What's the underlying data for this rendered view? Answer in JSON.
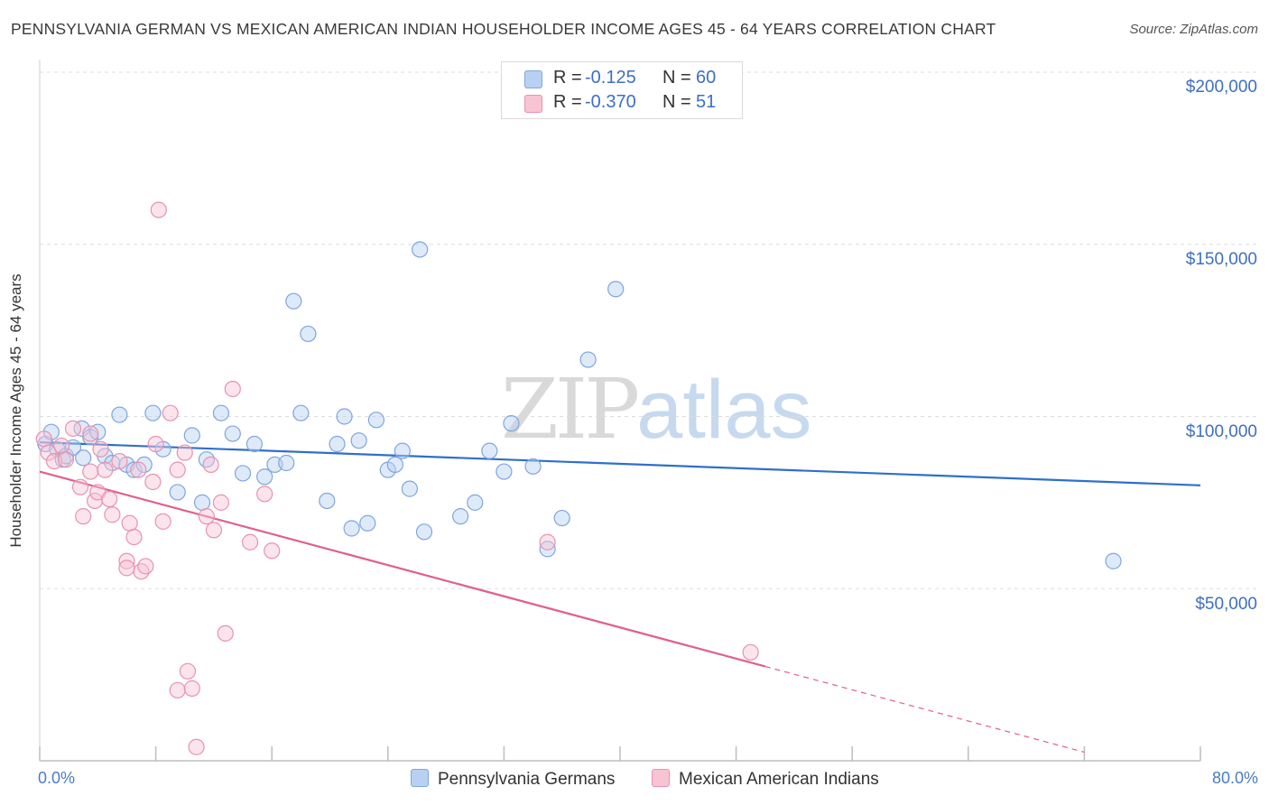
{
  "header": {
    "title": "PENNSYLVANIA GERMAN VS MEXICAN AMERICAN INDIAN HOUSEHOLDER INCOME AGES 45 - 64 YEARS CORRELATION CHART",
    "source": "Source: ZipAtlas.com"
  },
  "watermark": {
    "zip": "ZIP",
    "atlas": "atlas"
  },
  "legend": {
    "r_label": "R =",
    "n_label": "N =",
    "series1": {
      "r": "-0.125",
      "n": "60"
    },
    "series2": {
      "r": "-0.370",
      "n": "51"
    }
  },
  "colors": {
    "series1_fill": "#b8d1f2",
    "series1_stroke": "#7ea6de",
    "series1_line": "#2f6fcb",
    "series2_fill": "#f8c4d4",
    "series2_stroke": "#e892ae",
    "series2_line": "#e0608d",
    "tick_label": "#3d6fc4",
    "grid": "#dcdcdc"
  },
  "chart_data": {
    "type": "scatter",
    "title": "PENNSYLVANIA GERMAN VS MEXICAN AMERICAN INDIAN HOUSEHOLDER INCOME AGES 45 - 64 YEARS CORRELATION CHART",
    "xlabel": "",
    "ylabel": "Householder Income Ages 45 - 64 years",
    "xlim": [
      0,
      80
    ],
    "ylim": [
      0,
      200000
    ],
    "x_tick_labels": [
      "0.0%",
      "80.0%"
    ],
    "y_tick_labels": [
      "$50,000",
      "$100,000",
      "$150,000",
      "$200,000"
    ],
    "y_ticks": [
      50000,
      100000,
      150000,
      200000
    ],
    "grid": true,
    "legend_position": "top-center and bottom",
    "series": [
      {
        "name": "Pennsylvania Germans",
        "r": -0.125,
        "n": 60,
        "trend": {
          "x": [
            0,
            80
          ],
          "y": [
            92500,
            80000
          ],
          "dashed_from": null
        },
        "points": [
          [
            0.4,
            92000
          ],
          [
            0.8,
            95500
          ],
          [
            1.2,
            90500
          ],
          [
            1.6,
            87500
          ],
          [
            1.8,
            88500
          ],
          [
            2.3,
            91000
          ],
          [
            2.9,
            96500
          ],
          [
            3.0,
            88000
          ],
          [
            3.5,
            94000
          ],
          [
            4.0,
            95500
          ],
          [
            4.5,
            88500
          ],
          [
            5.0,
            86500
          ],
          [
            5.5,
            100500
          ],
          [
            6.0,
            86000
          ],
          [
            6.5,
            84500
          ],
          [
            7.2,
            86000
          ],
          [
            7.8,
            101000
          ],
          [
            8.5,
            90500
          ],
          [
            9.5,
            78000
          ],
          [
            10.5,
            94500
          ],
          [
            11.2,
            75000
          ],
          [
            11.5,
            87500
          ],
          [
            12.5,
            101000
          ],
          [
            13.3,
            95000
          ],
          [
            14.0,
            83500
          ],
          [
            14.8,
            92000
          ],
          [
            15.5,
            82500
          ],
          [
            16.2,
            86000
          ],
          [
            17.0,
            86500
          ],
          [
            17.5,
            133500
          ],
          [
            18.0,
            101000
          ],
          [
            18.5,
            124000
          ],
          [
            19.8,
            75500
          ],
          [
            20.5,
            92000
          ],
          [
            21.0,
            100000
          ],
          [
            21.5,
            67500
          ],
          [
            22.0,
            93000
          ],
          [
            22.6,
            69000
          ],
          [
            23.2,
            99000
          ],
          [
            24.0,
            84500
          ],
          [
            24.5,
            86000
          ],
          [
            25.0,
            90000
          ],
          [
            25.5,
            79000
          ],
          [
            26.2,
            148500
          ],
          [
            26.5,
            66500
          ],
          [
            29.0,
            71000
          ],
          [
            30.0,
            75000
          ],
          [
            31.0,
            90000
          ],
          [
            32.0,
            84000
          ],
          [
            32.5,
            98000
          ],
          [
            34.0,
            85500
          ],
          [
            35.0,
            61500
          ],
          [
            36.0,
            70500
          ],
          [
            37.8,
            116500
          ],
          [
            39.7,
            137000
          ],
          [
            74.0,
            58000
          ]
        ]
      },
      {
        "name": "Mexican American Indians",
        "r": -0.37,
        "n": 51,
        "trend": {
          "x": [
            0,
            72
          ],
          "y": [
            84000,
            2500
          ],
          "dashed_from": 50
        },
        "points": [
          [
            0.3,
            93500
          ],
          [
            0.6,
            89500
          ],
          [
            1.0,
            87000
          ],
          [
            1.5,
            91500
          ],
          [
            1.8,
            87500
          ],
          [
            2.3,
            96500
          ],
          [
            2.8,
            79500
          ],
          [
            3.0,
            71000
          ],
          [
            3.5,
            95000
          ],
          [
            3.5,
            84000
          ],
          [
            3.8,
            75500
          ],
          [
            4.0,
            78000
          ],
          [
            4.2,
            90500
          ],
          [
            4.5,
            84500
          ],
          [
            4.8,
            76000
          ],
          [
            5.0,
            71500
          ],
          [
            5.5,
            87000
          ],
          [
            6.0,
            58000
          ],
          [
            6.0,
            56000
          ],
          [
            6.2,
            69000
          ],
          [
            6.5,
            65000
          ],
          [
            6.8,
            84500
          ],
          [
            7.0,
            55000
          ],
          [
            7.3,
            56500
          ],
          [
            7.8,
            81000
          ],
          [
            8.0,
            92000
          ],
          [
            8.2,
            160000
          ],
          [
            8.5,
            69500
          ],
          [
            9.0,
            101000
          ],
          [
            9.5,
            84500
          ],
          [
            9.5,
            20500
          ],
          [
            10.0,
            89500
          ],
          [
            10.2,
            26000
          ],
          [
            10.5,
            21000
          ],
          [
            10.8,
            4000
          ],
          [
            11.5,
            71000
          ],
          [
            11.8,
            86000
          ],
          [
            12.0,
            67000
          ],
          [
            12.5,
            75000
          ],
          [
            12.8,
            37000
          ],
          [
            13.3,
            108000
          ],
          [
            14.5,
            63500
          ],
          [
            15.5,
            77500
          ],
          [
            16.0,
            61000
          ],
          [
            35.0,
            63500
          ],
          [
            49.0,
            31500
          ]
        ]
      }
    ]
  }
}
